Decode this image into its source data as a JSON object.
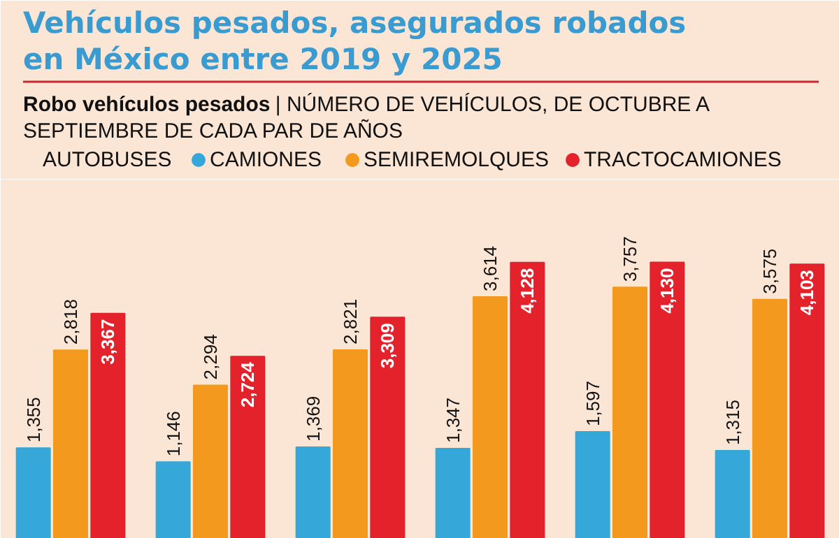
{
  "chart_data": {
    "type": "bar",
    "title": "Vehículos pesados, asegurados robados en México entre 2019 y 2025",
    "subtitle": "Robo vehículos pesados| NÚMERO DE VEHÍCULOS, DE OCTUBRE A SEPTIEMBRE DE CADA PAR DE AÑOS",
    "categories": [
      null,
      null,
      null,
      null,
      null,
      null
    ],
    "series": [
      {
        "name": "CAMIONES",
        "color": "#35a7d8",
        "values": [
          1355,
          1146,
          1369,
          1347,
          1597,
          1315
        ],
        "value_labels": [
          "1,355",
          "1,146",
          "1,369",
          "1,347",
          "1,597",
          "1,315"
        ]
      },
      {
        "name": "SEMIREMOLQUES",
        "color": "#f39a1e",
        "values": [
          2818,
          2294,
          2821,
          3614,
          3757,
          3575
        ],
        "value_labels": [
          "2,818",
          "2,294",
          "2,821",
          "3,614",
          "3,757",
          "3,575"
        ]
      },
      {
        "name": "TRACTOCAMIONES",
        "color": "#e3222c",
        "values": [
          3367,
          2724,
          3309,
          4128,
          4130,
          4103
        ],
        "value_labels": [
          "3,367",
          "2,724",
          "3,309",
          "4,128",
          "4,130",
          "4,103"
        ]
      }
    ],
    "annotations": [
      "AUTOBUSES"
    ],
    "legend": "top",
    "grid": false
  }
}
